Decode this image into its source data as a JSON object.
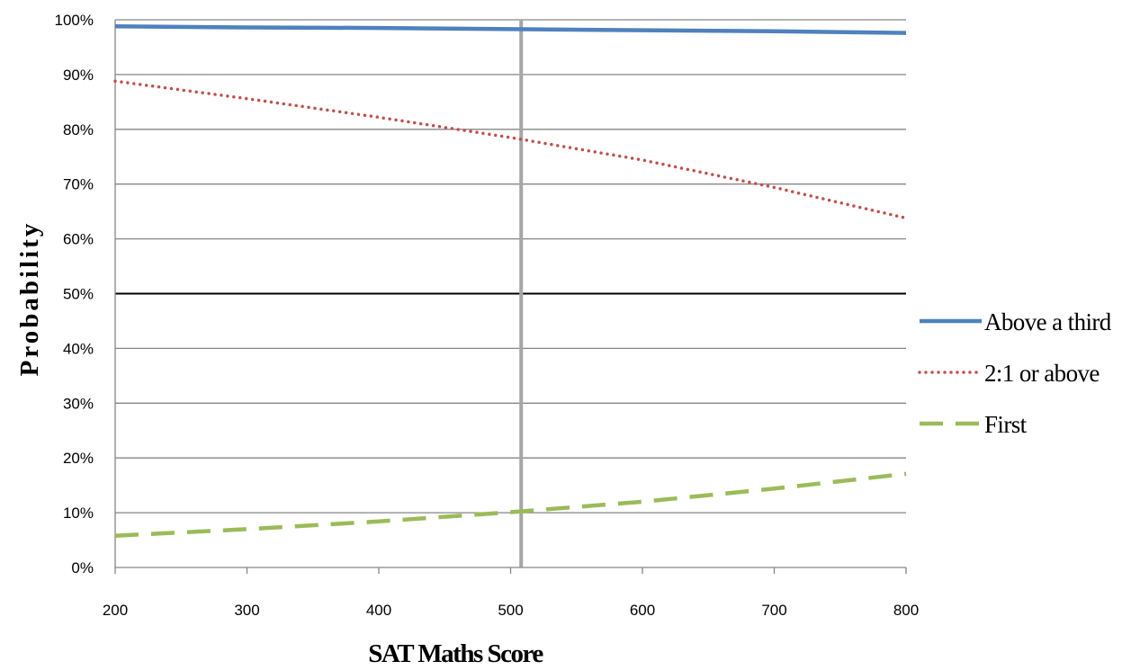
{
  "chart_data": {
    "type": "line",
    "title": "",
    "xlabel": "SAT Maths Score",
    "ylabel": "Probability",
    "x": [
      200,
      300,
      400,
      500,
      600,
      700,
      800
    ],
    "x_ticks": [
      "200",
      "300",
      "400",
      "500",
      "600",
      "700",
      "800"
    ],
    "xlim": [
      200,
      800
    ],
    "y_ticks": [
      "0%",
      "10%",
      "20%",
      "30%",
      "40%",
      "50%",
      "60%",
      "70%",
      "80%",
      "90%",
      "100%"
    ],
    "ylim": [
      0,
      100
    ],
    "y_unit": "%",
    "grid": true,
    "reference_lines": {
      "horizontal_y": 50,
      "vertical_x": 508
    },
    "legend_position": "right",
    "series": [
      {
        "name": "Above a third",
        "style": "solid",
        "color": "#4f81bd",
        "values": [
          98.8,
          98.6,
          98.5,
          98.3,
          98.1,
          97.9,
          97.6
        ]
      },
      {
        "name": "2:1 or above",
        "style": "dotted",
        "color": "#c0504d",
        "values": [
          88.8,
          85.6,
          82.2,
          78.5,
          74.4,
          69.4,
          63.8
        ]
      },
      {
        "name": "First",
        "style": "dashed",
        "color": "#9bbb59",
        "values": [
          5.8,
          7.0,
          8.4,
          10.1,
          12.0,
          14.4,
          17.1
        ]
      }
    ]
  }
}
